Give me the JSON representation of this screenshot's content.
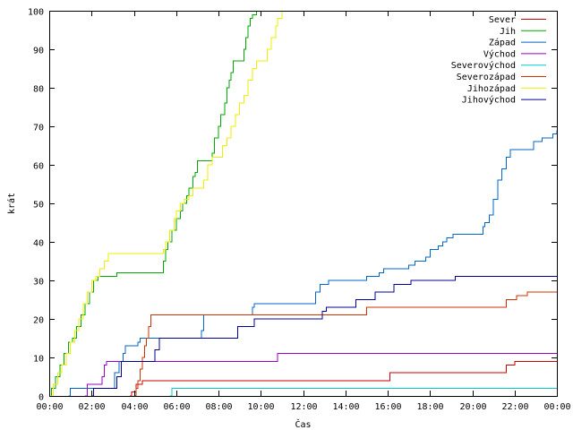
{
  "chart_data": {
    "type": "line",
    "xlabel": "Čas",
    "ylabel": "krát",
    "xlim": [
      0,
      24
    ],
    "ylim": [
      0,
      100
    ],
    "x_ticks": [
      {
        "value": 0,
        "label": "00:00"
      },
      {
        "value": 2,
        "label": "02:00"
      },
      {
        "value": 4,
        "label": "04:00"
      },
      {
        "value": 6,
        "label": "06:00"
      },
      {
        "value": 8,
        "label": "08:00"
      },
      {
        "value": 10,
        "label": "10:00"
      },
      {
        "value": 12,
        "label": "12:00"
      },
      {
        "value": 14,
        "label": "14:00"
      },
      {
        "value": 16,
        "label": "16:00"
      },
      {
        "value": 18,
        "label": "18:00"
      },
      {
        "value": 20,
        "label": "20:00"
      },
      {
        "value": 22,
        "label": "22:00"
      },
      {
        "value": 24,
        "label": "00:00"
      }
    ],
    "y_ticks": [
      {
        "value": 0,
        "label": "0"
      },
      {
        "value": 10,
        "label": "10"
      },
      {
        "value": 20,
        "label": "20"
      },
      {
        "value": 30,
        "label": "30"
      },
      {
        "value": 40,
        "label": "40"
      },
      {
        "value": 50,
        "label": "50"
      },
      {
        "value": 60,
        "label": "60"
      },
      {
        "value": 70,
        "label": "70"
      },
      {
        "value": 80,
        "label": "80"
      },
      {
        "value": 90,
        "label": "90"
      },
      {
        "value": 100,
        "label": "100"
      }
    ],
    "grid": false,
    "legend_position": "top-right",
    "series": [
      {
        "name": "Sever",
        "color": "#cc0000",
        "step": true,
        "points": [
          [
            3.8,
            0
          ],
          [
            3.9,
            1
          ],
          [
            4.1,
            3
          ],
          [
            4.4,
            4
          ],
          [
            16.0,
            4
          ],
          [
            16.1,
            6
          ],
          [
            21.5,
            6
          ],
          [
            21.6,
            8
          ],
          [
            22.0,
            9
          ],
          [
            24,
            9
          ]
        ]
      },
      {
        "name": "Jih",
        "color": "#00aa00",
        "step": true,
        "points": [
          [
            0,
            0
          ],
          [
            0.1,
            2
          ],
          [
            0.3,
            5
          ],
          [
            0.5,
            8
          ],
          [
            0.7,
            11
          ],
          [
            0.9,
            14
          ],
          [
            1.1,
            15
          ],
          [
            1.3,
            18
          ],
          [
            1.5,
            21
          ],
          [
            1.7,
            24
          ],
          [
            1.9,
            27
          ],
          [
            2.1,
            30
          ],
          [
            2.3,
            31
          ],
          [
            2.8,
            31
          ],
          [
            3.2,
            32
          ],
          [
            5.3,
            32
          ],
          [
            5.4,
            35
          ],
          [
            5.5,
            38
          ],
          [
            5.6,
            40
          ],
          [
            5.8,
            43
          ],
          [
            6.0,
            46
          ],
          [
            6.2,
            48
          ],
          [
            6.3,
            50
          ],
          [
            6.5,
            52
          ],
          [
            6.6,
            54
          ],
          [
            6.8,
            57
          ],
          [
            6.9,
            58
          ],
          [
            7.0,
            61
          ],
          [
            7.6,
            61
          ],
          [
            7.7,
            63
          ],
          [
            7.8,
            67
          ],
          [
            8.0,
            70
          ],
          [
            8.1,
            73
          ],
          [
            8.3,
            76
          ],
          [
            8.4,
            80
          ],
          [
            8.5,
            82
          ],
          [
            8.6,
            84
          ],
          [
            8.7,
            87
          ],
          [
            9.1,
            87
          ],
          [
            9.2,
            90
          ],
          [
            9.3,
            93
          ],
          [
            9.4,
            96
          ],
          [
            9.5,
            98
          ],
          [
            9.6,
            99
          ],
          [
            9.8,
            100
          ]
        ]
      },
      {
        "name": "Západ",
        "color": "#0066cc",
        "step": true,
        "points": [
          [
            0.9,
            0
          ],
          [
            1.0,
            2
          ],
          [
            3.0,
            2
          ],
          [
            3.1,
            6
          ],
          [
            3.3,
            9
          ],
          [
            3.5,
            11
          ],
          [
            3.6,
            13
          ],
          [
            4.1,
            13
          ],
          [
            4.2,
            14
          ],
          [
            4.3,
            15
          ],
          [
            7.1,
            15
          ],
          [
            7.2,
            17
          ],
          [
            7.3,
            21
          ],
          [
            9.5,
            21
          ],
          [
            9.6,
            23
          ],
          [
            9.7,
            24
          ],
          [
            12.5,
            24
          ],
          [
            12.6,
            27
          ],
          [
            12.8,
            29
          ],
          [
            13.2,
            30
          ],
          [
            14.9,
            30
          ],
          [
            15.0,
            31
          ],
          [
            15.6,
            32
          ],
          [
            15.8,
            33
          ],
          [
            16.9,
            33
          ],
          [
            17.0,
            34
          ],
          [
            17.3,
            35
          ],
          [
            17.8,
            36
          ],
          [
            18.0,
            38
          ],
          [
            18.4,
            39
          ],
          [
            18.6,
            40
          ],
          [
            18.8,
            41
          ],
          [
            19.1,
            42
          ],
          [
            20.4,
            42
          ],
          [
            20.5,
            44
          ],
          [
            20.6,
            45
          ],
          [
            20.8,
            47
          ],
          [
            21.0,
            51
          ],
          [
            21.2,
            56
          ],
          [
            21.4,
            59
          ],
          [
            21.6,
            62
          ],
          [
            21.8,
            64
          ],
          [
            22.8,
            64
          ],
          [
            22.9,
            66
          ],
          [
            23.3,
            67
          ],
          [
            23.8,
            68
          ],
          [
            24,
            69
          ]
        ]
      },
      {
        "name": "Východ",
        "color": "#9900cc",
        "step": true,
        "points": [
          [
            1.7,
            0
          ],
          [
            1.8,
            3
          ],
          [
            2.4,
            3
          ],
          [
            2.5,
            5
          ],
          [
            2.6,
            8
          ],
          [
            2.7,
            9
          ],
          [
            10.7,
            9
          ],
          [
            10.8,
            11
          ],
          [
            24,
            11
          ]
        ]
      },
      {
        "name": "Severovýchod",
        "color": "#00cccc",
        "step": true,
        "points": [
          [
            5.7,
            0
          ],
          [
            5.8,
            2
          ],
          [
            24,
            2
          ]
        ]
      },
      {
        "name": "Severozápad",
        "color": "#cc3300",
        "step": true,
        "points": [
          [
            4.0,
            0
          ],
          [
            4.1,
            2
          ],
          [
            4.2,
            4
          ],
          [
            4.3,
            7
          ],
          [
            4.4,
            10
          ],
          [
            4.5,
            13
          ],
          [
            4.6,
            15
          ],
          [
            4.7,
            18
          ],
          [
            4.8,
            21
          ],
          [
            14.9,
            21
          ],
          [
            15.0,
            23
          ],
          [
            21.5,
            23
          ],
          [
            21.6,
            25
          ],
          [
            22.1,
            26
          ],
          [
            22.6,
            27
          ],
          [
            24,
            27
          ]
        ]
      },
      {
        "name": "Jihozápad",
        "color": "#eeee00",
        "step": true,
        "points": [
          [
            0,
            0
          ],
          [
            0.2,
            3
          ],
          [
            0.4,
            6
          ],
          [
            0.6,
            8
          ],
          [
            0.8,
            11
          ],
          [
            1.0,
            14
          ],
          [
            1.2,
            17
          ],
          [
            1.4,
            20
          ],
          [
            1.6,
            24
          ],
          [
            1.8,
            27
          ],
          [
            2.0,
            30
          ],
          [
            2.2,
            31
          ],
          [
            2.4,
            33
          ],
          [
            2.6,
            35
          ],
          [
            2.8,
            37
          ],
          [
            5.3,
            37
          ],
          [
            5.4,
            38
          ],
          [
            5.5,
            40
          ],
          [
            5.7,
            43
          ],
          [
            5.9,
            46
          ],
          [
            6.0,
            48
          ],
          [
            6.2,
            50
          ],
          [
            6.4,
            51
          ],
          [
            6.6,
            52
          ],
          [
            6.8,
            54
          ],
          [
            7.2,
            54
          ],
          [
            7.3,
            56
          ],
          [
            7.5,
            60
          ],
          [
            7.7,
            62
          ],
          [
            8.0,
            62
          ],
          [
            8.2,
            65
          ],
          [
            8.4,
            67
          ],
          [
            8.6,
            70
          ],
          [
            8.8,
            73
          ],
          [
            9.0,
            76
          ],
          [
            9.2,
            78
          ],
          [
            9.4,
            82
          ],
          [
            9.6,
            85
          ],
          [
            9.8,
            87
          ],
          [
            10.1,
            87
          ],
          [
            10.3,
            90
          ],
          [
            10.5,
            93
          ],
          [
            10.7,
            96
          ],
          [
            10.8,
            98
          ],
          [
            11.0,
            100
          ]
        ]
      },
      {
        "name": "Jihovýchod",
        "color": "#000099",
        "step": true,
        "points": [
          [
            2.0,
            0
          ],
          [
            2.1,
            2
          ],
          [
            3.0,
            2
          ],
          [
            3.2,
            5
          ],
          [
            3.4,
            9
          ],
          [
            4.9,
            9
          ],
          [
            5.0,
            12
          ],
          [
            5.2,
            15
          ],
          [
            8.8,
            15
          ],
          [
            8.9,
            18
          ],
          [
            9.6,
            18
          ],
          [
            9.7,
            20
          ],
          [
            12.8,
            20
          ],
          [
            12.9,
            22
          ],
          [
            13.1,
            23
          ],
          [
            14.4,
            23
          ],
          [
            14.5,
            25
          ],
          [
            15.3,
            25
          ],
          [
            15.4,
            27
          ],
          [
            16.2,
            27
          ],
          [
            16.3,
            29
          ],
          [
            17.0,
            29
          ],
          [
            17.1,
            30
          ],
          [
            19.1,
            30
          ],
          [
            19.2,
            31
          ],
          [
            24,
            31
          ]
        ]
      }
    ]
  }
}
